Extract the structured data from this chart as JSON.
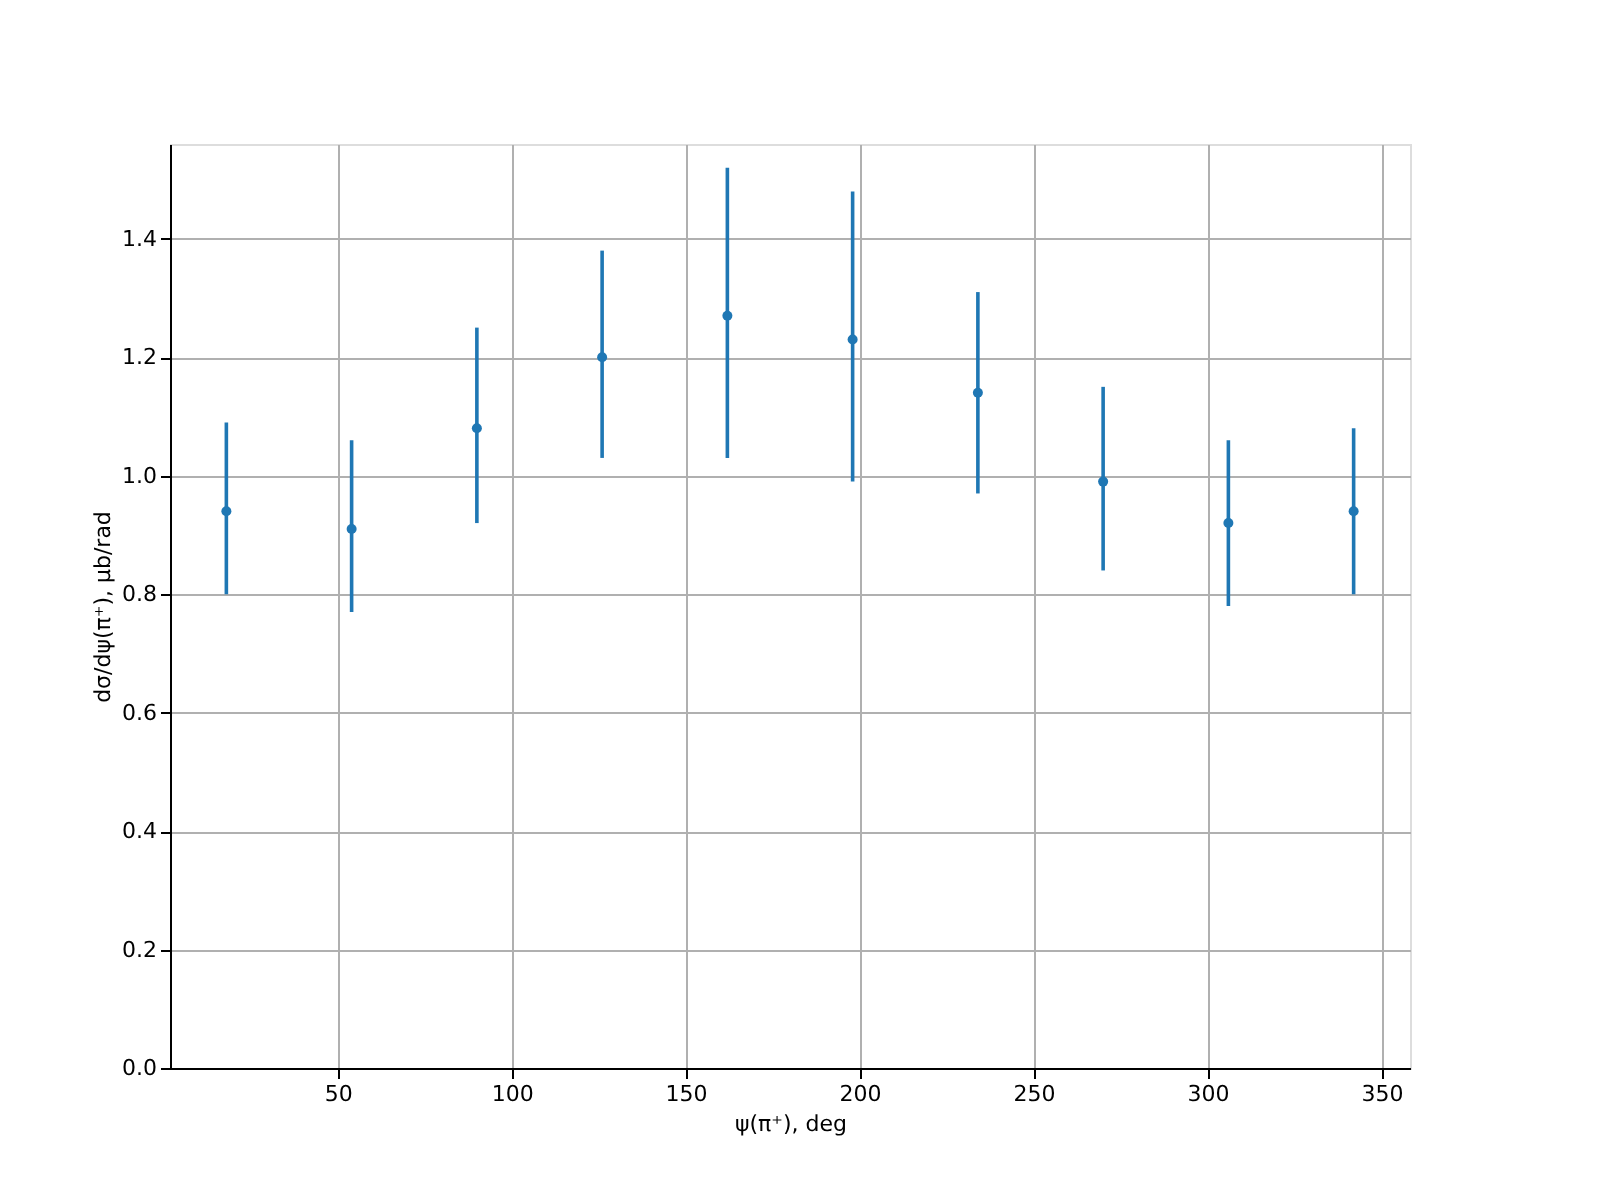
{
  "chart_data": {
    "type": "scatter",
    "xlabel": "ψ(π⁺), deg",
    "ylabel": "dσ/dψ(π⁺), μb/rad",
    "x": [
      18,
      54,
      90,
      126,
      162,
      198,
      234,
      270,
      306,
      342
    ],
    "series": [
      {
        "color": "#1f77b4",
        "values": [
          0.94,
          0.91,
          1.08,
          1.2,
          1.27,
          1.23,
          1.14,
          0.99,
          0.92,
          0.94
        ],
        "errors": [
          [
            0.8,
            1.09
          ],
          [
            0.77,
            1.06
          ],
          [
            0.92,
            1.25
          ],
          [
            1.03,
            1.38
          ],
          [
            1.03,
            1.52
          ],
          [
            0.99,
            1.48
          ],
          [
            0.97,
            1.31
          ],
          [
            0.84,
            1.15
          ],
          [
            0.78,
            1.06
          ],
          [
            0.8,
            1.08
          ]
        ]
      }
    ],
    "xlim": [
      1.8,
      358.2
    ],
    "ylim": [
      0,
      1.56
    ],
    "xticks": [
      50,
      100,
      150,
      200,
      250,
      300,
      350
    ],
    "yticks": [
      {
        "value": 0,
        "label": "0.0"
      },
      0.2,
      0.4,
      0.6,
      0.8,
      {
        "value": 1,
        "label": "1.0"
      },
      1.2,
      1.4
    ],
    "grid": true,
    "marker": "circle"
  }
}
